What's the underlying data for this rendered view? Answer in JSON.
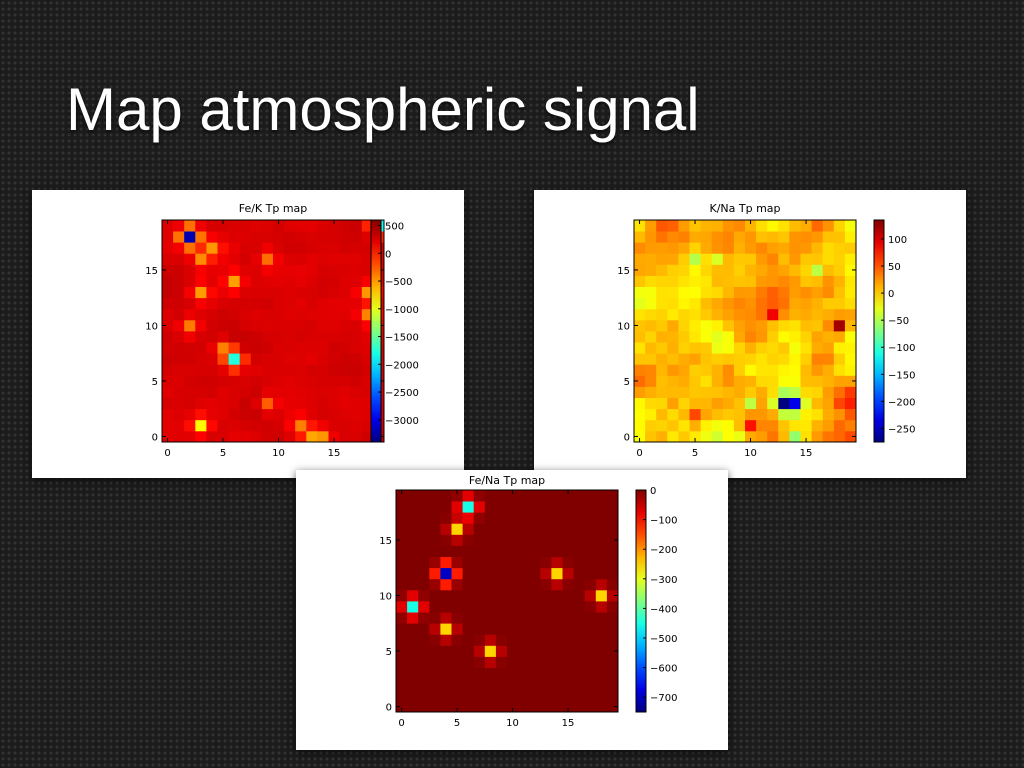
{
  "slide": {
    "title": "Map atmospheric signal"
  },
  "chart_data": [
    {
      "type": "heatmap",
      "title": "Fe/K Tp map",
      "xticks": [
        "0",
        "5",
        "10",
        "15"
      ],
      "yticks": [
        "0",
        "5",
        "10",
        "15"
      ],
      "xlim": [
        -0.5,
        19.5
      ],
      "ylim": [
        -0.5,
        19.5
      ],
      "colorbar": {
        "min": -3400,
        "max": 600,
        "ticks": [
          "500",
          "0",
          "−500",
          "−1000",
          "−1500",
          "−2000",
          "−2500",
          "−3000"
        ],
        "tick_values": [
          500,
          0,
          -500,
          -1000,
          -1500,
          -2000,
          -2500,
          -3000
        ]
      },
      "colormap": "jet",
      "background_value": 250,
      "noise": 80,
      "features": [
        {
          "x": 2,
          "y": 18,
          "value": -3200
        },
        {
          "x": 19,
          "y": 19,
          "value": -1900
        },
        {
          "x": 3,
          "y": 16,
          "value": -400
        },
        {
          "x": 4,
          "y": 17,
          "value": -400
        },
        {
          "x": 9,
          "y": 16,
          "value": -350
        },
        {
          "x": 3,
          "y": 13,
          "value": -500
        },
        {
          "x": 6,
          "y": 14,
          "value": -500
        },
        {
          "x": 18,
          "y": 13,
          "value": -500
        },
        {
          "x": 18,
          "y": 11,
          "value": -400
        },
        {
          "x": 2,
          "y": 10,
          "value": -400
        },
        {
          "x": 5,
          "y": 8,
          "value": -400
        },
        {
          "x": 6,
          "y": 7,
          "value": -1800
        },
        {
          "x": 9,
          "y": 3,
          "value": -300
        },
        {
          "x": 3,
          "y": 1,
          "value": -900
        },
        {
          "x": 12,
          "y": 1,
          "value": -350
        },
        {
          "x": 13,
          "y": 0,
          "value": -400
        },
        {
          "x": 14,
          "y": 0,
          "value": -400
        }
      ]
    },
    {
      "type": "heatmap",
      "title": "K/Na Tp map",
      "xticks": [
        "0",
        "5",
        "10",
        "15"
      ],
      "yticks": [
        "0",
        "5",
        "10",
        "15"
      ],
      "xlim": [
        -0.5,
        19.5
      ],
      "ylim": [
        -0.5,
        19.5
      ],
      "colorbar": {
        "min": -275,
        "max": 135,
        "ticks": [
          "100",
          "50",
          "0",
          "−50",
          "−100",
          "−150",
          "−200",
          "−250"
        ],
        "tick_values": [
          100,
          50,
          0,
          -50,
          -100,
          -150,
          -200,
          -250
        ]
      },
      "colormap": "jet",
      "background_value": 15,
      "noise": 45,
      "features": [
        {
          "x": 18,
          "y": 10,
          "value": 135
        },
        {
          "x": 13,
          "y": 3,
          "value": -260
        },
        {
          "x": 14,
          "y": 3,
          "value": -170
        },
        {
          "x": 10,
          "y": 3,
          "value": -60
        },
        {
          "x": 10,
          "y": 1,
          "value": 85
        },
        {
          "x": 12,
          "y": 11,
          "value": 80
        },
        {
          "x": 5,
          "y": 2,
          "value": 75
        },
        {
          "x": 14,
          "y": 0,
          "value": -60
        },
        {
          "x": 5,
          "y": 16,
          "value": -45
        },
        {
          "x": 7,
          "y": 16,
          "value": -45
        },
        {
          "x": 16,
          "y": 15,
          "value": -40
        }
      ]
    },
    {
      "type": "heatmap",
      "title": "Fe/Na Tp map",
      "xticks": [
        "0",
        "5",
        "10",
        "15"
      ],
      "yticks": [
        "0",
        "5",
        "10",
        "15"
      ],
      "xlim": [
        -0.5,
        19.5
      ],
      "ylim": [
        -0.5,
        19.5
      ],
      "colorbar": {
        "min": -750,
        "max": 0,
        "ticks": [
          "0",
          "−100",
          "−200",
          "−300",
          "−400",
          "−500",
          "−600",
          "−700"
        ],
        "tick_values": [
          0,
          -100,
          -200,
          -300,
          -400,
          -500,
          -600,
          -700
        ]
      },
      "colormap": "jet",
      "background_value": 0,
      "noise": 0,
      "features": [
        {
          "x": 6,
          "y": 18,
          "value": -450
        },
        {
          "x": 5,
          "y": 16,
          "value": -250
        },
        {
          "x": 4,
          "y": 12,
          "value": -700
        },
        {
          "x": 14,
          "y": 12,
          "value": -250
        },
        {
          "x": 18,
          "y": 10,
          "value": -250
        },
        {
          "x": 1,
          "y": 9,
          "value": -450
        },
        {
          "x": 4,
          "y": 7,
          "value": -250
        },
        {
          "x": 8,
          "y": 5,
          "value": -250
        }
      ]
    }
  ]
}
